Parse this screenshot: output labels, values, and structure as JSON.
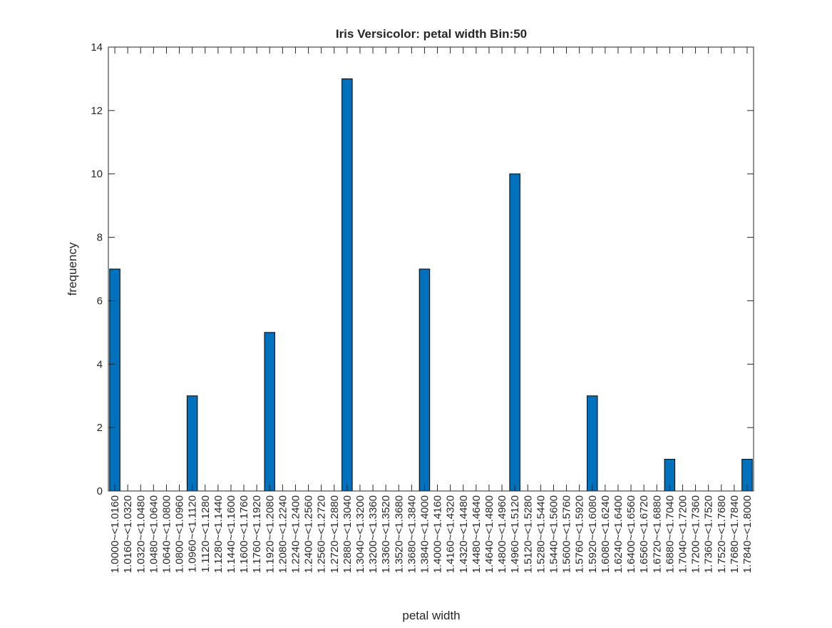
{
  "chart_data": {
    "type": "bar",
    "title": "Iris Versicolor: petal width Bin:50",
    "xlabel": "petal width",
    "ylabel": "frequency",
    "ylim": [
      0,
      14
    ],
    "yticks": [
      0,
      2,
      4,
      6,
      8,
      10,
      12,
      14
    ],
    "grid": false,
    "categories": [
      "1.0000~<1.0160",
      "1.0160~<1.0320",
      "1.0320~<1.0480",
      "1.0480~<1.0640",
      "1.0640~<1.0800",
      "1.0800~<1.0960",
      "1.0960~<1.1120",
      "1.1120~<1.1280",
      "1.1280~<1.1440",
      "1.1440~<1.1600",
      "1.1600~<1.1760",
      "1.1760~<1.1920",
      "1.1920~<1.2080",
      "1.2080~<1.2240",
      "1.2240~<1.2400",
      "1.2400~<1.2560",
      "1.2560~<1.2720",
      "1.2720~<1.2880",
      "1.2880~<1.3040",
      "1.3040~<1.3200",
      "1.3200~<1.3360",
      "1.3360~<1.3520",
      "1.3520~<1.3680",
      "1.3680~<1.3840",
      "1.3840~<1.4000",
      "1.4000~<1.4160",
      "1.4160~<1.4320",
      "1.4320~<1.4480",
      "1.4480~<1.4640",
      "1.4640~<1.4800",
      "1.4800~<1.4960",
      "1.4960~<1.5120",
      "1.5120~<1.5280",
      "1.5280~<1.5440",
      "1.5440~<1.5600",
      "1.5600~<1.5760",
      "1.5760~<1.5920",
      "1.5920~<1.6080",
      "1.6080~<1.6240",
      "1.6240~<1.6400",
      "1.6400~<1.6560",
      "1.6560~<1.6720",
      "1.6720~<1.6880",
      "1.6880~<1.7040",
      "1.7040~<1.7200",
      "1.7200~<1.7360",
      "1.7360~<1.7520",
      "1.7520~<1.7680",
      "1.7680~<1.7840",
      "1.7840~<1.8000"
    ],
    "values": [
      7,
      0,
      0,
      0,
      0,
      0,
      3,
      0,
      0,
      0,
      0,
      0,
      5,
      0,
      0,
      0,
      0,
      0,
      13,
      0,
      0,
      0,
      0,
      0,
      7,
      0,
      0,
      0,
      0,
      0,
      0,
      10,
      0,
      0,
      0,
      0,
      0,
      3,
      0,
      0,
      0,
      0,
      0,
      1,
      0,
      0,
      0,
      0,
      0,
      1
    ],
    "bar_color": "#0072BD",
    "bar_edge_color": "#000000"
  }
}
